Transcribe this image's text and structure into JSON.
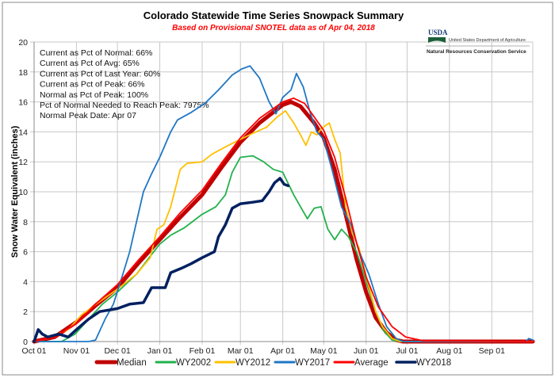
{
  "chart_data": {
    "type": "line",
    "title": "Colorado Statewide Time Series Snowpack Summary",
    "subtitle": "Based on Provisional SNOTEL data as of Apr 04, 2018",
    "xlabel": "",
    "ylabel": "Snow Water Equivalent (inches)",
    "x_unit": "days since Oct 01",
    "xlim": [
      0,
      365
    ],
    "ylim": [
      0,
      20
    ],
    "yticks": [
      0,
      2,
      4,
      6,
      8,
      10,
      12,
      14,
      16,
      18,
      20
    ],
    "xticks": [
      {
        "day": 0,
        "label": "Oct 01"
      },
      {
        "day": 31,
        "label": "Nov 01"
      },
      {
        "day": 61,
        "label": "Dec 01"
      },
      {
        "day": 92,
        "label": "Jan 01"
      },
      {
        "day": 123,
        "label": "Feb 01"
      },
      {
        "day": 151,
        "label": "Mar 01"
      },
      {
        "day": 182,
        "label": "Apr 01"
      },
      {
        "day": 212,
        "label": "May 01"
      },
      {
        "day": 243,
        "label": "Jun 01"
      },
      {
        "day": 273,
        "label": "Jul 01"
      },
      {
        "day": 304,
        "label": "Aug 01"
      },
      {
        "day": 335,
        "label": "Sep 01"
      }
    ],
    "grid": true,
    "legend_position": "bottom",
    "stats": [
      "Current as Pct of Normal: 66%",
      "Current as Pct of Avg: 65%",
      "Current as Pct of Last Year: 60%",
      "Current as Pct of Peak: 66%",
      "Normal as Pct of Peak: 100%",
      "Pct of Normal Needed to Reach Peak: 7975%",
      "Normal Peak Date: Apr 07"
    ],
    "series": [
      {
        "name": "Median",
        "color": "#c00000",
        "width": 5,
        "points": [
          [
            0,
            0
          ],
          [
            15,
            0.3
          ],
          [
            31,
            1.3
          ],
          [
            45,
            2.4
          ],
          [
            61,
            3.6
          ],
          [
            76,
            5.2
          ],
          [
            92,
            6.8
          ],
          [
            107,
            8.3
          ],
          [
            123,
            9.8
          ],
          [
            137,
            11.6
          ],
          [
            151,
            13.3
          ],
          [
            165,
            14.6
          ],
          [
            182,
            15.8
          ],
          [
            188,
            16.0
          ],
          [
            195,
            15.7
          ],
          [
            205,
            14.6
          ],
          [
            212,
            13.6
          ],
          [
            220,
            11.5
          ],
          [
            228,
            8.5
          ],
          [
            236,
            5.5
          ],
          [
            243,
            3.3
          ],
          [
            250,
            1.6
          ],
          [
            258,
            0.6
          ],
          [
            265,
            0.1
          ],
          [
            270,
            0
          ],
          [
            365,
            0
          ]
        ]
      },
      {
        "name": "WY2002",
        "color": "#22b14c",
        "width": 1.8,
        "points": [
          [
            0,
            0
          ],
          [
            20,
            0
          ],
          [
            30,
            0.5
          ],
          [
            40,
            1.5
          ],
          [
            50,
            2.5
          ],
          [
            61,
            3.3
          ],
          [
            75,
            4.5
          ],
          [
            85,
            5.7
          ],
          [
            92,
            6.5
          ],
          [
            100,
            7.1
          ],
          [
            110,
            7.6
          ],
          [
            123,
            8.5
          ],
          [
            133,
            9.0
          ],
          [
            140,
            9.8
          ],
          [
            145,
            11.3
          ],
          [
            151,
            12.3
          ],
          [
            160,
            12.4
          ],
          [
            168,
            12.0
          ],
          [
            175,
            11.5
          ],
          [
            182,
            11.3
          ],
          [
            190,
            9.8
          ],
          [
            195,
            9.0
          ],
          [
            200,
            8.2
          ],
          [
            205,
            8.9
          ],
          [
            210,
            9.0
          ],
          [
            215,
            7.5
          ],
          [
            220,
            6.8
          ],
          [
            225,
            7.5
          ],
          [
            230,
            7.0
          ],
          [
            236,
            6.0
          ],
          [
            243,
            4.0
          ],
          [
            250,
            2.0
          ],
          [
            256,
            0.7
          ],
          [
            262,
            0.1
          ],
          [
            268,
            0
          ],
          [
            365,
            0
          ]
        ]
      },
      {
        "name": "WY2012",
        "color": "#ffc000",
        "width": 1.8,
        "points": [
          [
            0,
            0
          ],
          [
            10,
            0.2
          ],
          [
            25,
            0.8
          ],
          [
            35,
            1.8
          ],
          [
            50,
            2.8
          ],
          [
            61,
            3.5
          ],
          [
            75,
            4.5
          ],
          [
            85,
            5.6
          ],
          [
            90,
            7.5
          ],
          [
            95,
            7.8
          ],
          [
            100,
            9.0
          ],
          [
            107,
            11.5
          ],
          [
            112,
            11.9
          ],
          [
            123,
            12.0
          ],
          [
            130,
            12.5
          ],
          [
            140,
            13.0
          ],
          [
            151,
            13.5
          ],
          [
            160,
            13.9
          ],
          [
            170,
            14.3
          ],
          [
            178,
            15.0
          ],
          [
            184,
            15.4
          ],
          [
            190,
            14.6
          ],
          [
            195,
            13.8
          ],
          [
            199,
            13.1
          ],
          [
            203,
            14.0
          ],
          [
            207,
            13.8
          ],
          [
            210,
            14.2
          ],
          [
            216,
            14.6
          ],
          [
            220,
            13.5
          ],
          [
            224,
            12.6
          ],
          [
            228,
            9
          ],
          [
            233,
            7.2
          ],
          [
            238,
            6.2
          ],
          [
            244,
            4.0
          ],
          [
            250,
            2.0
          ],
          [
            255,
            1.0
          ],
          [
            262,
            0.2
          ],
          [
            268,
            0
          ],
          [
            365,
            0
          ]
        ]
      },
      {
        "name": "WY2017",
        "color": "#1f77c4",
        "width": 1.8,
        "points": [
          [
            0,
            0
          ],
          [
            40,
            0
          ],
          [
            45,
            0.1
          ],
          [
            52,
            1.5
          ],
          [
            58,
            2.5
          ],
          [
            65,
            4.5
          ],
          [
            70,
            6
          ],
          [
            75,
            8
          ],
          [
            80,
            10
          ],
          [
            86,
            11.2
          ],
          [
            92,
            12.3
          ],
          [
            100,
            14.0
          ],
          [
            105,
            14.8
          ],
          [
            115,
            15.3
          ],
          [
            125,
            15.9
          ],
          [
            135,
            16.8
          ],
          [
            145,
            17.8
          ],
          [
            152,
            18.2
          ],
          [
            158,
            18.4
          ],
          [
            165,
            17.6
          ],
          [
            172,
            16.0
          ],
          [
            177,
            15.2
          ],
          [
            182,
            16.3
          ],
          [
            188,
            16.8
          ],
          [
            192,
            17.9
          ],
          [
            197,
            17.0
          ],
          [
            202,
            15.3
          ],
          [
            207,
            14.0
          ],
          [
            212,
            13.5
          ],
          [
            218,
            11.5
          ],
          [
            225,
            9
          ],
          [
            232,
            7.8
          ],
          [
            238,
            6
          ],
          [
            245,
            4.5
          ],
          [
            252,
            2.5
          ],
          [
            258,
            1.0
          ],
          [
            265,
            0.2
          ],
          [
            270,
            0
          ],
          [
            360,
            0
          ],
          [
            362,
            0.2
          ],
          [
            365,
            0.1
          ]
        ]
      },
      {
        "name": "Average",
        "color": "#ff0000",
        "width": 1.8,
        "points": [
          [
            0,
            0
          ],
          [
            15,
            0.3
          ],
          [
            31,
            1.2
          ],
          [
            45,
            2.5
          ],
          [
            61,
            3.8
          ],
          [
            76,
            5.4
          ],
          [
            92,
            7.0
          ],
          [
            107,
            8.6
          ],
          [
            123,
            10.1
          ],
          [
            137,
            11.9
          ],
          [
            151,
            13.6
          ],
          [
            165,
            14.9
          ],
          [
            182,
            16.0
          ],
          [
            190,
            16.25
          ],
          [
            198,
            15.9
          ],
          [
            212,
            14.1
          ],
          [
            220,
            12.3
          ],
          [
            228,
            9.6
          ],
          [
            236,
            6.6
          ],
          [
            243,
            4.3
          ],
          [
            252,
            2.3
          ],
          [
            262,
            1.0
          ],
          [
            272,
            0.3
          ],
          [
            285,
            0.05
          ],
          [
            365,
            0
          ]
        ]
      },
      {
        "name": "WY2018",
        "color": "#002060",
        "width": 3.5,
        "points": [
          [
            0,
            0
          ],
          [
            3,
            0.8
          ],
          [
            6,
            0.5
          ],
          [
            10,
            0.3
          ],
          [
            18,
            0.5
          ],
          [
            25,
            0.3
          ],
          [
            31,
            0.8
          ],
          [
            40,
            1.5
          ],
          [
            48,
            2.0
          ],
          [
            61,
            2.2
          ],
          [
            70,
            2.5
          ],
          [
            80,
            2.6
          ],
          [
            86,
            3.6
          ],
          [
            96,
            3.6
          ],
          [
            100,
            4.6
          ],
          [
            108,
            4.9
          ],
          [
            115,
            5.2
          ],
          [
            123,
            5.6
          ],
          [
            132,
            6.0
          ],
          [
            135,
            7.0
          ],
          [
            140,
            7.8
          ],
          [
            145,
            8.9
          ],
          [
            151,
            9.2
          ],
          [
            160,
            9.3
          ],
          [
            167,
            9.4
          ],
          [
            172,
            10.0
          ],
          [
            176,
            10.6
          ],
          [
            180,
            10.9
          ],
          [
            183,
            10.5
          ],
          [
            186,
            10.4
          ]
        ]
      }
    ]
  },
  "logo": {
    "agency_short": "USDA",
    "department": "United States Department of Agriculture",
    "service": "Natural Resources Conservation Service"
  },
  "colors": {
    "subtitle": "#ff0000",
    "grid": "#c8c8c8",
    "logo_green": "#1b5e3a",
    "logo_blue": "#1a3d7a"
  }
}
